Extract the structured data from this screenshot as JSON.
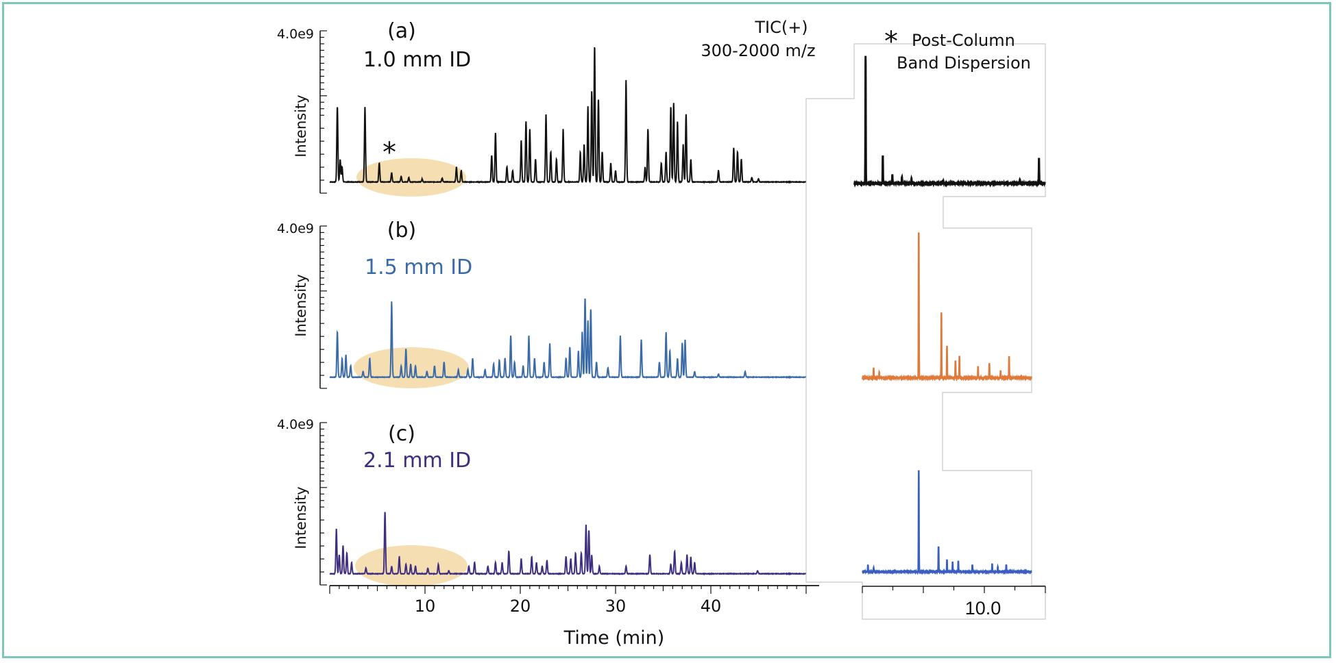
{
  "colors": {
    "frame": "#7cc7bb",
    "highlight": "#f3d9a4",
    "trace_a": "#111111",
    "trace_b": "#3a6aa8",
    "trace_c": "#3f2e80",
    "inset_b": "#e07a3a",
    "inset_c": "#3a5fc0"
  },
  "annotations": {
    "tic_line1": "TIC(+)",
    "tic_line2": "300-2000 m/z",
    "dispersion_star": "*",
    "dispersion_line1": "Post-Column",
    "dispersion_line2": "Band Dispersion",
    "peak_star": "*"
  },
  "chart_data": [
    {
      "type": "line",
      "panel": "(a)",
      "series_name": "1.0 mm ID",
      "ylabel": "Intensity",
      "ymax_label": "4.0e9",
      "xlim": [
        0,
        50
      ],
      "ylim": [
        0,
        4000000000.0
      ],
      "peaks": [
        [
          0.8,
          2000000000.0
        ],
        [
          1.1,
          600000000.0
        ],
        [
          1.3,
          400000000.0
        ],
        [
          3.7,
          2000000000.0
        ],
        [
          5.2,
          500000000.0
        ],
        [
          6.5,
          250000000.0
        ],
        [
          7.5,
          150000000.0
        ],
        [
          8.3,
          120000000.0
        ],
        [
          9.7,
          80000000.0
        ],
        [
          11.8,
          100000000.0
        ],
        [
          13.3,
          400000000.0
        ],
        [
          13.8,
          300000000.0
        ],
        [
          17.0,
          700000000.0
        ],
        [
          17.4,
          1300000000.0
        ],
        [
          18.6,
          400000000.0
        ],
        [
          19.2,
          300000000.0
        ],
        [
          20.1,
          1100000000.0
        ],
        [
          20.6,
          1600000000.0
        ],
        [
          21.0,
          1400000000.0
        ],
        [
          21.6,
          600000000.0
        ],
        [
          22.7,
          1800000000.0
        ],
        [
          23.2,
          800000000.0
        ],
        [
          23.8,
          600000000.0
        ],
        [
          24.5,
          1400000000.0
        ],
        [
          26.3,
          800000000.0
        ],
        [
          26.7,
          1000000000.0
        ],
        [
          27.1,
          2000000000.0
        ],
        [
          27.5,
          2400000000.0
        ],
        [
          27.8,
          3600000000.0
        ],
        [
          28.2,
          2200000000.0
        ],
        [
          28.6,
          800000000.0
        ],
        [
          29.5,
          500000000.0
        ],
        [
          30.0,
          300000000.0
        ],
        [
          31.1,
          2700000000.0
        ],
        [
          33.1,
          400000000.0
        ],
        [
          33.4,
          1400000000.0
        ],
        [
          34.8,
          500000000.0
        ],
        [
          35.3,
          800000000.0
        ],
        [
          35.8,
          2000000000.0
        ],
        [
          36.1,
          2100000000.0
        ],
        [
          36.5,
          1600000000.0
        ],
        [
          37.1,
          1000000000.0
        ],
        [
          37.4,
          1800000000.0
        ],
        [
          37.9,
          600000000.0
        ],
        [
          40.8,
          300000000.0
        ],
        [
          42.4,
          900000000.0
        ],
        [
          42.8,
          800000000.0
        ],
        [
          43.2,
          600000000.0
        ],
        [
          44.3,
          120000000.0
        ],
        [
          45.0,
          80000000.0
        ]
      ]
    },
    {
      "type": "line",
      "panel": "(b)",
      "series_name": "1.5 mm ID",
      "ylabel": "Intensity",
      "ymax_label": "4.0e9",
      "xlim": [
        0,
        50
      ],
      "ylim": [
        0,
        4000000000.0
      ],
      "peaks": [
        [
          0.8,
          1200000000.0
        ],
        [
          1.3,
          500000000.0
        ],
        [
          1.7,
          600000000.0
        ],
        [
          2.2,
          300000000.0
        ],
        [
          3.5,
          150000000.0
        ],
        [
          4.2,
          500000000.0
        ],
        [
          6.5,
          2000000000.0
        ],
        [
          7.5,
          300000000.0
        ],
        [
          8.0,
          750000000.0
        ],
        [
          8.5,
          350000000.0
        ],
        [
          9.0,
          300000000.0
        ],
        [
          10.2,
          150000000.0
        ],
        [
          11.0,
          300000000.0
        ],
        [
          12.0,
          400000000.0
        ],
        [
          13.5,
          200000000.0
        ],
        [
          14.5,
          200000000.0
        ],
        [
          15.0,
          500000000.0
        ],
        [
          16.3,
          200000000.0
        ],
        [
          17.2,
          350000000.0
        ],
        [
          17.8,
          450000000.0
        ],
        [
          18.4,
          500000000.0
        ],
        [
          19.0,
          1100000000.0
        ],
        [
          19.4,
          400000000.0
        ],
        [
          20.3,
          300000000.0
        ],
        [
          20.9,
          1100000000.0
        ],
        [
          21.5,
          500000000.0
        ],
        [
          22.5,
          400000000.0
        ],
        [
          23.1,
          900000000.0
        ],
        [
          24.8,
          500000000.0
        ],
        [
          25.2,
          800000000.0
        ],
        [
          26.1,
          700000000.0
        ],
        [
          26.5,
          1200000000.0
        ],
        [
          26.8,
          2100000000.0
        ],
        [
          27.1,
          1500000000.0
        ],
        [
          27.4,
          1800000000.0
        ],
        [
          28.0,
          400000000.0
        ],
        [
          29.2,
          250000000.0
        ],
        [
          30.5,
          1100000000.0
        ],
        [
          32.7,
          1000000000.0
        ],
        [
          34.6,
          400000000.0
        ],
        [
          35.3,
          1200000000.0
        ],
        [
          35.7,
          700000000.0
        ],
        [
          36.5,
          500000000.0
        ],
        [
          37.0,
          900000000.0
        ],
        [
          37.3,
          1000000000.0
        ],
        [
          38.3,
          150000000.0
        ],
        [
          40.8,
          80000000.0
        ],
        [
          43.6,
          150000000.0
        ]
      ]
    },
    {
      "type": "line",
      "panel": "(c)",
      "series_name": "2.1 mm ID",
      "ylabel": "Intensity",
      "ymax_label": "4.0e9",
      "xlim": [
        0,
        50
      ],
      "ylim": [
        0,
        4000000000.0
      ],
      "peaks": [
        [
          0.7,
          1200000000.0
        ],
        [
          1.0,
          500000000.0
        ],
        [
          1.4,
          750000000.0
        ],
        [
          1.8,
          550000000.0
        ],
        [
          2.3,
          300000000.0
        ],
        [
          3.8,
          150000000.0
        ],
        [
          5.8,
          1650000000.0
        ],
        [
          6.5,
          200000000.0
        ],
        [
          7.3,
          450000000.0
        ],
        [
          8.0,
          250000000.0
        ],
        [
          8.5,
          250000000.0
        ],
        [
          9.0,
          200000000.0
        ],
        [
          10.3,
          150000000.0
        ],
        [
          11.4,
          250000000.0
        ],
        [
          12.5,
          80000000.0
        ],
        [
          14.6,
          200000000.0
        ],
        [
          15.2,
          300000000.0
        ],
        [
          16.6,
          200000000.0
        ],
        [
          17.4,
          300000000.0
        ],
        [
          18.1,
          300000000.0
        ],
        [
          18.8,
          600000000.0
        ],
        [
          20.1,
          400000000.0
        ],
        [
          21.2,
          450000000.0
        ],
        [
          21.7,
          300000000.0
        ],
        [
          22.3,
          200000000.0
        ],
        [
          22.8,
          350000000.0
        ],
        [
          24.8,
          450000000.0
        ],
        [
          25.3,
          400000000.0
        ],
        [
          25.8,
          550000000.0
        ],
        [
          26.4,
          550000000.0
        ],
        [
          26.9,
          1300000000.0
        ],
        [
          27.2,
          1150000000.0
        ],
        [
          27.5,
          500000000.0
        ],
        [
          28.3,
          200000000.0
        ],
        [
          31.1,
          200000000.0
        ],
        [
          33.6,
          500000000.0
        ],
        [
          35.8,
          250000000.0
        ],
        [
          36.2,
          600000000.0
        ],
        [
          36.9,
          300000000.0
        ],
        [
          37.5,
          500000000.0
        ],
        [
          37.9,
          450000000.0
        ],
        [
          38.3,
          300000000.0
        ],
        [
          44.9,
          80000000.0
        ]
      ]
    },
    {
      "type": "line",
      "panel": "inset-a",
      "title": "Post-Column Band Dispersion",
      "xlim": [
        8,
        11
      ],
      "ylim": [
        0,
        1.0
      ],
      "peaks": [
        [
          8.18,
          1.0
        ],
        [
          8.45,
          0.22
        ],
        [
          8.6,
          0.07
        ],
        [
          8.75,
          0.05
        ],
        [
          8.9,
          0.04
        ],
        [
          9.4,
          0.02
        ],
        [
          10.6,
          0.03
        ],
        [
          10.9,
          0.2
        ]
      ]
    },
    {
      "type": "line",
      "panel": "inset-b",
      "xlim": [
        8,
        11
      ],
      "ylim": [
        0,
        1.0
      ],
      "x_tick_labels": [],
      "peaks": [
        [
          8.2,
          0.07
        ],
        [
          8.3,
          0.04
        ],
        [
          9.0,
          1.0
        ],
        [
          9.4,
          0.45
        ],
        [
          9.5,
          0.22
        ],
        [
          9.65,
          0.12
        ],
        [
          9.72,
          0.15
        ],
        [
          10.05,
          0.08
        ],
        [
          10.25,
          0.1
        ],
        [
          10.45,
          0.05
        ],
        [
          10.6,
          0.15
        ]
      ]
    },
    {
      "type": "line",
      "panel": "inset-c",
      "xlim": [
        8,
        11
      ],
      "ylim": [
        0,
        1.0
      ],
      "x_tick_labels": [
        "10.0"
      ],
      "peaks": [
        [
          8.1,
          0.07
        ],
        [
          8.2,
          0.04
        ],
        [
          9.0,
          1.0
        ],
        [
          9.35,
          0.25
        ],
        [
          9.5,
          0.12
        ],
        [
          9.6,
          0.1
        ],
        [
          9.7,
          0.11
        ],
        [
          9.95,
          0.07
        ],
        [
          10.3,
          0.08
        ],
        [
          10.4,
          0.05
        ],
        [
          10.55,
          0.07
        ]
      ]
    }
  ],
  "x_axis": {
    "label": "Time (min)",
    "ticks": [
      "10",
      "20",
      "30",
      "40"
    ]
  }
}
